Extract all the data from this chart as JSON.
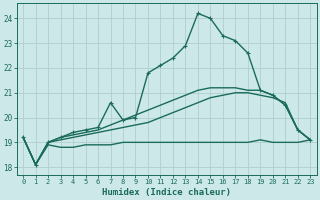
{
  "xlabel": "Humidex (Indice chaleur)",
  "background_color": "#cde8e8",
  "grid_color": "#b0d0cc",
  "line_color": "#1a6b5a",
  "xlim": [
    -0.5,
    23.5
  ],
  "ylim": [
    17.7,
    24.6
  ],
  "yticks": [
    18,
    19,
    20,
    21,
    22,
    23,
    24
  ],
  "xticks": [
    0,
    1,
    2,
    3,
    4,
    5,
    6,
    7,
    8,
    9,
    10,
    11,
    12,
    13,
    14,
    15,
    16,
    17,
    18,
    19,
    20,
    21,
    22,
    23
  ],
  "series": [
    {
      "x": [
        0,
        1,
        2,
        3,
        4,
        5,
        6,
        7,
        8,
        9,
        10,
        11,
        12,
        13,
        14,
        15,
        16,
        17,
        18,
        19,
        20,
        21,
        22,
        23
      ],
      "y": [
        19.2,
        18.1,
        18.9,
        18.8,
        18.8,
        18.9,
        18.9,
        18.9,
        19.0,
        19.0,
        19.0,
        19.0,
        19.0,
        19.0,
        19.0,
        19.0,
        19.0,
        19.0,
        19.0,
        19.1,
        19.0,
        19.0,
        19.0,
        19.1
      ],
      "marker": null,
      "linewidth": 1.0
    },
    {
      "x": [
        0,
        1,
        2,
        3,
        4,
        5,
        6,
        7,
        8,
        9,
        10,
        11,
        12,
        13,
        14,
        15,
        16,
        17,
        18,
        19,
        20,
        21,
        22,
        23
      ],
      "y": [
        19.2,
        18.1,
        19.0,
        19.1,
        19.2,
        19.3,
        19.4,
        19.5,
        19.6,
        19.7,
        19.8,
        20.0,
        20.2,
        20.4,
        20.6,
        20.8,
        20.9,
        21.0,
        21.0,
        20.9,
        20.8,
        20.6,
        19.5,
        19.1
      ],
      "marker": null,
      "linewidth": 1.0
    },
    {
      "x": [
        0,
        1,
        2,
        3,
        4,
        5,
        6,
        7,
        8,
        9,
        10,
        11,
        12,
        13,
        14,
        15,
        16,
        17,
        18,
        19,
        20,
        21,
        22,
        23
      ],
      "y": [
        19.2,
        18.1,
        19.0,
        19.2,
        19.3,
        19.4,
        19.5,
        19.7,
        19.9,
        20.1,
        20.3,
        20.5,
        20.7,
        20.9,
        21.1,
        21.2,
        21.2,
        21.2,
        21.1,
        21.1,
        20.9,
        20.5,
        19.5,
        19.1
      ],
      "marker": null,
      "linewidth": 1.0
    },
    {
      "x": [
        0,
        1,
        2,
        3,
        4,
        5,
        6,
        7,
        8,
        9,
        10,
        11,
        12,
        13,
        14,
        15,
        16,
        17,
        18,
        19,
        20,
        21,
        22,
        23
      ],
      "y": [
        19.2,
        18.1,
        19.0,
        19.2,
        19.4,
        19.5,
        19.6,
        20.6,
        19.9,
        20.0,
        21.8,
        22.1,
        22.4,
        22.9,
        24.2,
        24.0,
        23.3,
        23.1,
        22.6,
        21.1,
        20.9,
        20.5,
        19.5,
        19.1
      ],
      "marker": "+",
      "linewidth": 1.0
    }
  ]
}
